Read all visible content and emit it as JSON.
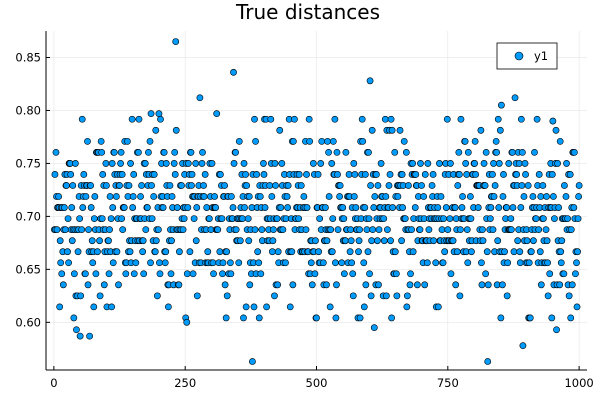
{
  "chart_data": {
    "type": "scatter",
    "title": "True distances",
    "xlabel": "",
    "ylabel": "",
    "xlim": [
      -15,
      1015
    ],
    "ylim": [
      0.555,
      0.875
    ],
    "xticks": [
      0,
      250,
      500,
      750,
      1000
    ],
    "yticks": [
      0.6,
      0.65,
      0.7,
      0.75,
      0.8,
      0.85
    ],
    "xtick_labels": [
      "0",
      "250",
      "500",
      "750",
      "1000"
    ],
    "ytick_labels": [
      "0.60",
      "0.65",
      "0.70",
      "0.75",
      "0.80",
      "0.85"
    ],
    "grid": true,
    "legend_position": "top-right",
    "marker_color": "#009AFA",
    "series": [
      {
        "name": "y1",
        "n_points": 1000,
        "mean": 0.7,
        "sd": 0.045,
        "notable_points": [
          {
            "x": 232,
            "y": 0.865
          },
          {
            "x": 342,
            "y": 0.836
          },
          {
            "x": 602,
            "y": 0.828
          },
          {
            "x": 852,
            "y": 0.805
          },
          {
            "x": 878,
            "y": 0.812
          },
          {
            "x": 278,
            "y": 0.812
          },
          {
            "x": 378,
            "y": 0.563
          },
          {
            "x": 826,
            "y": 0.563
          },
          {
            "x": 893,
            "y": 0.578
          },
          {
            "x": 43,
            "y": 0.593
          },
          {
            "x": 50,
            "y": 0.587
          },
          {
            "x": 68,
            "y": 0.587
          },
          {
            "x": 253,
            "y": 0.6
          },
          {
            "x": 957,
            "y": 0.593
          },
          {
            "x": 610,
            "y": 0.595
          },
          {
            "x": 185,
            "y": 0.797
          },
          {
            "x": 200,
            "y": 0.797
          },
          {
            "x": 310,
            "y": 0.797
          },
          {
            "x": 950,
            "y": 0.79
          }
        ]
      }
    ]
  }
}
